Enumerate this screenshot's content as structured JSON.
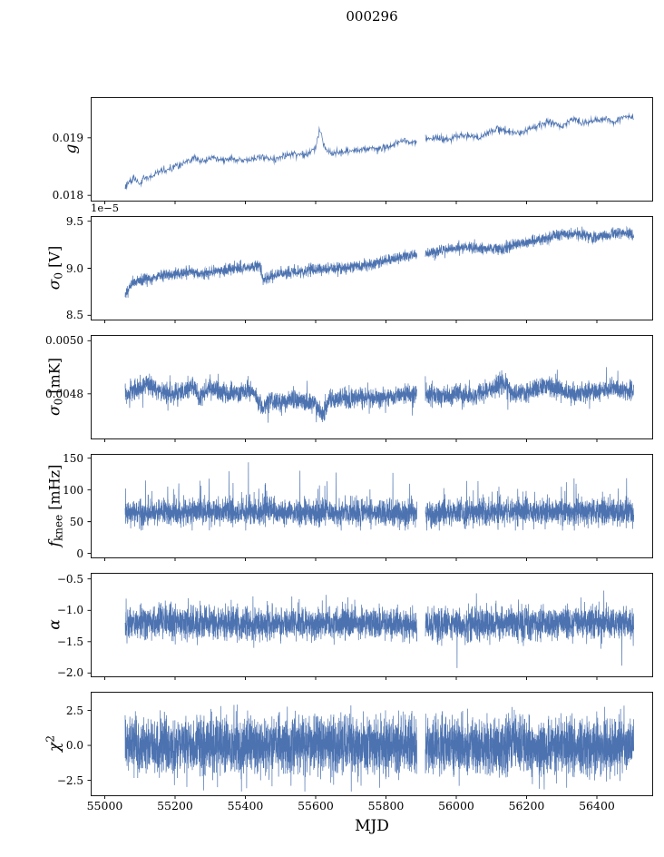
{
  "chart_data": {
    "type": "line",
    "title": "000296",
    "xlabel": "MJD",
    "line_color": "#4c72b0",
    "axis_color": "#000000",
    "grid": false,
    "legend": "none",
    "xlim": [
      54960,
      56560
    ],
    "x_start": 55058,
    "x_end": 56505,
    "gap": [
      55888,
      55912
    ],
    "xticks": [
      {
        "v": 55000,
        "label": "55000"
      },
      {
        "v": 55200,
        "label": "55200"
      },
      {
        "v": 55400,
        "label": "55400"
      },
      {
        "v": 55600,
        "label": "55600"
      },
      {
        "v": 55800,
        "label": "55800"
      },
      {
        "v": 56000,
        "label": "56000"
      },
      {
        "v": 56200,
        "label": "56200"
      },
      {
        "v": 56400,
        "label": "56400"
      }
    ],
    "panels": [
      {
        "name": "g",
        "ylabel": {
          "main": "g",
          "sub": "",
          "sup": "",
          "unit": ""
        },
        "offset_text": "",
        "ylim": [
          0.0179,
          0.0197
        ],
        "yticks": [
          {
            "v": 0.018,
            "label": "0.018"
          },
          {
            "v": 0.019,
            "label": "0.019"
          }
        ],
        "dt": 1.2,
        "line_width": 0.7,
        "noise": {
          "sigma": 3e-05,
          "spike_p": 0.01,
          "spike_amp": 0.00012,
          "up_frac": 0.7
        },
        "clamp": [
          0.01796,
          0.01968
        ],
        "seed": 11,
        "trend": [
          [
            55058,
            0.01815
          ],
          [
            55070,
            0.01823
          ],
          [
            55085,
            0.0183
          ],
          [
            55100,
            0.0182
          ],
          [
            55112,
            0.01833
          ],
          [
            55125,
            0.01829
          ],
          [
            55140,
            0.01837
          ],
          [
            55160,
            0.01842
          ],
          [
            55180,
            0.01845
          ],
          [
            55200,
            0.01851
          ],
          [
            55225,
            0.01854
          ],
          [
            55255,
            0.01868
          ],
          [
            55270,
            0.01859
          ],
          [
            55285,
            0.01861
          ],
          [
            55305,
            0.01866
          ],
          [
            55330,
            0.01861
          ],
          [
            55360,
            0.01864
          ],
          [
            55390,
            0.0186
          ],
          [
            55420,
            0.01863
          ],
          [
            55450,
            0.01867
          ],
          [
            55480,
            0.01862
          ],
          [
            55510,
            0.01869
          ],
          [
            55540,
            0.01873
          ],
          [
            55570,
            0.01869
          ],
          [
            55598,
            0.0188
          ],
          [
            55612,
            0.01915
          ],
          [
            55625,
            0.01884
          ],
          [
            55645,
            0.01872
          ],
          [
            55670,
            0.01874
          ],
          [
            55700,
            0.01877
          ],
          [
            55730,
            0.01879
          ],
          [
            55760,
            0.01882
          ],
          [
            55790,
            0.0188
          ],
          [
            55820,
            0.01888
          ],
          [
            55850,
            0.01894
          ],
          [
            55880,
            0.01891
          ],
          [
            55910,
            0.01897
          ],
          [
            55940,
            0.019
          ],
          [
            55970,
            0.01896
          ],
          [
            56000,
            0.01903
          ],
          [
            56030,
            0.01906
          ],
          [
            56060,
            0.01899
          ],
          [
            56090,
            0.01909
          ],
          [
            56120,
            0.01915
          ],
          [
            56150,
            0.01911
          ],
          [
            56180,
            0.01908
          ],
          [
            56210,
            0.01917
          ],
          [
            56240,
            0.01923
          ],
          [
            56270,
            0.01928
          ],
          [
            56300,
            0.01921
          ],
          [
            56330,
            0.01933
          ],
          [
            56360,
            0.01927
          ],
          [
            56390,
            0.0193
          ],
          [
            56420,
            0.01933
          ],
          [
            56450,
            0.01929
          ],
          [
            56480,
            0.01937
          ],
          [
            56505,
            0.01935
          ]
        ]
      },
      {
        "name": "sigma0_V",
        "ylabel": {
          "main": "σ",
          "sub": "0",
          "sup": "",
          "unit": " [V]"
        },
        "offset_text": "1e−5",
        "ylim": [
          8.45,
          9.55
        ],
        "yticks": [
          {
            "v": 8.5,
            "label": "8.5"
          },
          {
            "v": 9.0,
            "label": "9.0"
          },
          {
            "v": 9.5,
            "label": "9.5"
          }
        ],
        "dt": 0.5,
        "line_width": 0.7,
        "noise": {
          "sigma": 0.03,
          "spike_p": 0.02,
          "spike_amp": 0.07,
          "up_frac": 0.5
        },
        "clamp": [
          8.55,
          9.52
        ],
        "seed": 22,
        "trend": [
          [
            55058,
            8.72
          ],
          [
            55080,
            8.84
          ],
          [
            55110,
            8.88
          ],
          [
            55150,
            8.91
          ],
          [
            55200,
            8.94
          ],
          [
            55250,
            8.96
          ],
          [
            55280,
            8.93
          ],
          [
            55320,
            8.97
          ],
          [
            55360,
            8.99
          ],
          [
            55400,
            9.01
          ],
          [
            55440,
            9.03
          ],
          [
            55450,
            8.88
          ],
          [
            55480,
            8.92
          ],
          [
            55520,
            8.95
          ],
          [
            55560,
            8.97
          ],
          [
            55600,
            8.99
          ],
          [
            55640,
            9.0
          ],
          [
            55680,
            9.01
          ],
          [
            55720,
            9.02
          ],
          [
            55760,
            9.04
          ],
          [
            55800,
            9.08
          ],
          [
            55840,
            9.12
          ],
          [
            55880,
            9.14
          ],
          [
            55920,
            9.16
          ],
          [
            55960,
            9.19
          ],
          [
            56000,
            9.21
          ],
          [
            56040,
            9.23
          ],
          [
            56080,
            9.21
          ],
          [
            56120,
            9.2
          ],
          [
            56160,
            9.24
          ],
          [
            56200,
            9.27
          ],
          [
            56240,
            9.31
          ],
          [
            56280,
            9.34
          ],
          [
            56320,
            9.37
          ],
          [
            56360,
            9.35
          ],
          [
            56400,
            9.32
          ],
          [
            56440,
            9.36
          ],
          [
            56470,
            9.38
          ],
          [
            56505,
            9.36
          ]
        ]
      },
      {
        "name": "sigma0_mK",
        "ylabel": {
          "main": "σ",
          "sub": "0",
          "sup": "",
          "unit": " [mK]"
        },
        "offset_text": "",
        "ylim": [
          0.00463,
          0.00502
        ],
        "yticks": [
          {
            "v": 0.0048,
            "label": "0.0048"
          },
          {
            "v": 0.005,
            "label": "0.0050"
          }
        ],
        "dt": 0.4,
        "line_width": 0.7,
        "noise": {
          "sigma": 1.8e-05,
          "spike_p": 0.04,
          "spike_amp": 9e-05,
          "up_frac": 0.5
        },
        "clamp": [
          0.004648,
          0.00496
        ],
        "seed": 33,
        "trend": [
          [
            55058,
            0.0048
          ],
          [
            55100,
            0.00482
          ],
          [
            55120,
            0.00484
          ],
          [
            55150,
            0.00481
          ],
          [
            55200,
            0.0048
          ],
          [
            55250,
            0.00483
          ],
          [
            55270,
            0.00478
          ],
          [
            55290,
            0.00482
          ],
          [
            55350,
            0.0048
          ],
          [
            55420,
            0.00481
          ],
          [
            55450,
            0.00474
          ],
          [
            55470,
            0.00478
          ],
          [
            55500,
            0.00477
          ],
          [
            55550,
            0.00478
          ],
          [
            55600,
            0.00476
          ],
          [
            55620,
            0.00472
          ],
          [
            55640,
            0.00478
          ],
          [
            55700,
            0.00478
          ],
          [
            55750,
            0.00479
          ],
          [
            55800,
            0.00478
          ],
          [
            55850,
            0.0048
          ],
          [
            55900,
            0.0048
          ],
          [
            55950,
            0.00479
          ],
          [
            56000,
            0.0048
          ],
          [
            56050,
            0.00479
          ],
          [
            56100,
            0.00482
          ],
          [
            56130,
            0.00484
          ],
          [
            56160,
            0.0048
          ],
          [
            56200,
            0.0048
          ],
          [
            56250,
            0.00483
          ],
          [
            56300,
            0.00481
          ],
          [
            56350,
            0.0048
          ],
          [
            56400,
            0.00481
          ],
          [
            56450,
            0.00482
          ],
          [
            56505,
            0.00481
          ]
        ]
      },
      {
        "name": "fknee",
        "ylabel": {
          "main": "f",
          "sub": "knee",
          "sup": "",
          "unit": " [mHz]"
        },
        "offset_text": "",
        "ylim": [
          -7,
          156
        ],
        "yticks": [
          {
            "v": 0,
            "label": "0"
          },
          {
            "v": 50,
            "label": "50"
          },
          {
            "v": 100,
            "label": "100"
          },
          {
            "v": 150,
            "label": "150"
          }
        ],
        "dt": 0.35,
        "line_width": 0.7,
        "noise": {
          "sigma": 9.5,
          "spike_p": 0.06,
          "spike_amp": 75,
          "up_frac": 0.85
        },
        "clamp": [
          36,
          147
        ],
        "seed": 44,
        "trend": [
          [
            55058,
            64
          ],
          [
            55300,
            66
          ],
          [
            55600,
            64
          ],
          [
            55900,
            63
          ],
          [
            56200,
            66
          ],
          [
            56505,
            64
          ]
        ]
      },
      {
        "name": "alpha",
        "ylabel": {
          "main": "α",
          "sub": "",
          "sup": "",
          "unit": ""
        },
        "offset_text": "",
        "ylim": [
          -2.06,
          -0.41
        ],
        "yticks": [
          {
            "v": -0.5,
            "label": "−0.5"
          },
          {
            "v": -1.0,
            "label": "−1.0"
          },
          {
            "v": -1.5,
            "label": "−1.5"
          },
          {
            "v": -2.0,
            "label": "−2.0"
          }
        ],
        "dt": 0.35,
        "line_width": 0.7,
        "noise": {
          "sigma": 0.13,
          "spike_p": 0.04,
          "spike_amp": 0.55,
          "up_frac": 0.5
        },
        "clamp": [
          -1.97,
          -0.58
        ],
        "seed": 55,
        "trend": [
          [
            55058,
            -1.18
          ],
          [
            55400,
            -1.22
          ],
          [
            55700,
            -1.2
          ],
          [
            56000,
            -1.22
          ],
          [
            56300,
            -1.2
          ],
          [
            56505,
            -1.21
          ]
        ]
      },
      {
        "name": "chi2",
        "ylabel": {
          "main": "χ",
          "sub": "",
          "sup": "2",
          "unit": ""
        },
        "offset_text": "",
        "ylim": [
          -3.6,
          3.8
        ],
        "yticks": [
          {
            "v": 2.5,
            "label": "2.5"
          },
          {
            "v": 0,
            "label": "0.0"
          },
          {
            "v": -2.5,
            "label": "−2.5"
          }
        ],
        "dt": 0.3,
        "line_width": 0.7,
        "noise": {
          "sigma": 1.0,
          "spike_p": 0.04,
          "spike_amp": 2.0,
          "up_frac": 0.5
        },
        "clamp": [
          -3.3,
          3.1
        ],
        "seed": 66,
        "trend": [
          [
            55058,
            0
          ],
          [
            56505,
            0
          ]
        ]
      }
    ]
  }
}
